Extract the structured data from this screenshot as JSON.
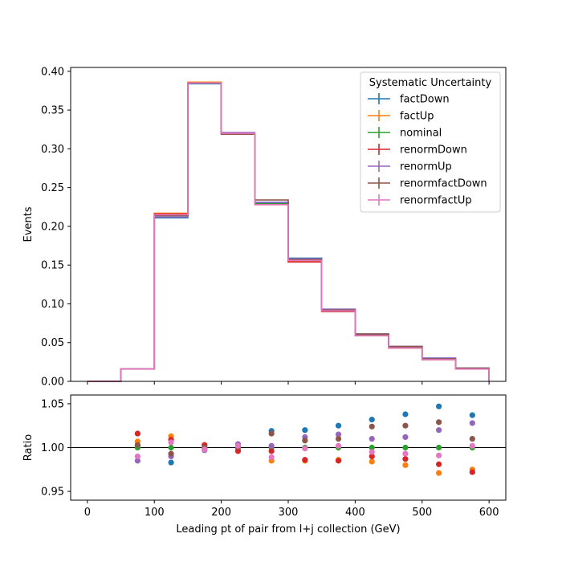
{
  "chart_data": {
    "type": "line",
    "xlabel": "Leading pt of pair from l+j collection (GeV)",
    "top_ylabel": "Events",
    "bottom_ylabel": "Ratio",
    "legend_title": "Systematic Uncertainty",
    "bin_edges": [
      0,
      50,
      100,
      150,
      200,
      250,
      300,
      350,
      400,
      450,
      500,
      550,
      600
    ],
    "ratio_x": [
      75,
      125,
      175,
      225,
      275,
      325,
      375,
      425,
      475,
      525,
      575
    ],
    "top_ylim": [
      0,
      0.405
    ],
    "bottom_ylim": [
      0.94,
      1.06
    ],
    "xlim": [
      -25,
      625
    ],
    "x_ticks": [
      "0",
      "100",
      "200",
      "300",
      "400",
      "500",
      "600"
    ],
    "x_tick_values": [
      0,
      100,
      200,
      300,
      400,
      500,
      600
    ],
    "top_y_ticks": [
      "0.00",
      "0.05",
      "0.10",
      "0.15",
      "0.20",
      "0.25",
      "0.30",
      "0.35",
      "0.40"
    ],
    "top_y_tick_values": [
      0,
      0.05,
      0.1,
      0.15,
      0.2,
      0.25,
      0.3,
      0.35,
      0.4
    ],
    "bottom_y_ticks": [
      "0.95",
      "1.00",
      "1.05"
    ],
    "bottom_y_tick_values": [
      0.95,
      1.0,
      1.05
    ],
    "series": [
      {
        "name": "factDown",
        "color": "#1f77b4",
        "values": [
          0.0,
          0.016,
          0.211,
          0.384,
          0.32,
          0.23,
          0.159,
          0.093,
          0.061,
          0.045,
          0.03,
          0.017
        ],
        "ratio": [
          1.002,
          0.983,
          0.998,
          1.003,
          1.019,
          1.02,
          1.025,
          1.032,
          1.038,
          1.047,
          1.037
        ]
      },
      {
        "name": "factUp",
        "color": "#ff7f0e",
        "values": [
          0.0,
          0.016,
          0.217,
          0.386,
          0.32,
          0.228,
          0.155,
          0.091,
          0.059,
          0.043,
          0.028,
          0.016
        ],
        "ratio": [
          1.007,
          1.013,
          1.002,
          0.997,
          0.985,
          0.985,
          0.986,
          0.984,
          0.98,
          0.971,
          0.975
        ]
      },
      {
        "name": "nominal",
        "color": "#2ca02c",
        "values": [
          0.0,
          0.016,
          0.214,
          0.385,
          0.32,
          0.229,
          0.157,
          0.092,
          0.06,
          0.044,
          0.029,
          0.017
        ],
        "ratio": [
          1.0,
          1.0,
          1.0,
          1.0,
          1.0,
          1.0,
          1.0,
          1.0,
          1.0,
          1.0,
          1.0
        ]
      },
      {
        "name": "renormDown",
        "color": "#d62728",
        "values": [
          0.0,
          0.016,
          0.216,
          0.385,
          0.319,
          0.228,
          0.154,
          0.09,
          0.059,
          0.043,
          0.028,
          0.016
        ],
        "ratio": [
          1.016,
          1.009,
          1.003,
          0.996,
          0.996,
          0.986,
          0.985,
          0.99,
          0.987,
          0.981,
          0.972
        ]
      },
      {
        "name": "renormUp",
        "color": "#9467bd",
        "values": [
          0.0,
          0.016,
          0.212,
          0.385,
          0.321,
          0.231,
          0.158,
          0.093,
          0.061,
          0.045,
          0.03,
          0.017
        ],
        "ratio": [
          0.985,
          0.99,
          0.997,
          1.004,
          1.002,
          1.012,
          1.015,
          1.01,
          1.012,
          1.02,
          1.028
        ]
      },
      {
        "name": "renormfactDown",
        "color": "#8c564b",
        "values": [
          0.0,
          0.016,
          0.214,
          0.385,
          0.319,
          0.234,
          0.157,
          0.092,
          0.061,
          0.045,
          0.029,
          0.017
        ],
        "ratio": [
          1.003,
          0.993,
          1.0,
          1.001,
          1.016,
          1.008,
          1.01,
          1.024,
          1.025,
          1.029,
          1.01
        ]
      },
      {
        "name": "renormfactUp",
        "color": "#e377c2",
        "values": [
          0.0,
          0.016,
          0.215,
          0.385,
          0.32,
          0.228,
          0.156,
          0.091,
          0.059,
          0.043,
          0.028,
          0.016
        ],
        "ratio": [
          0.99,
          1.006,
          0.998,
          1.002,
          0.989,
          0.999,
          1.002,
          0.995,
          0.993,
          0.991,
          1.002
        ]
      }
    ]
  }
}
